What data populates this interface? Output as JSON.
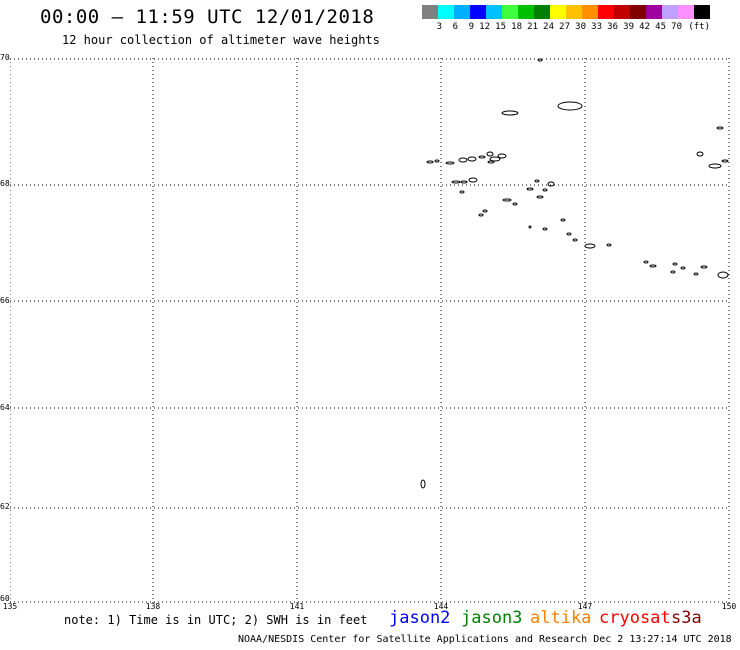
{
  "header": {
    "title": "00:00 – 11:59 UTC 12/01/2018",
    "subtitle": "12 hour collection of altimeter wave heights"
  },
  "legend": {
    "colors": [
      "#808080",
      "#00ffff",
      "#00b0ff",
      "#0000ff",
      "#00c0ff",
      "#40ff40",
      "#00c000",
      "#008000",
      "#ffff00",
      "#ffc000",
      "#ff9000",
      "#ff0000",
      "#c00000",
      "#800000",
      "#a000a0",
      "#c0a0ff",
      "#ff90ff",
      "#000000"
    ],
    "labels": [
      "3",
      "6",
      "9",
      "12",
      "15",
      "18",
      "21",
      "24",
      "27",
      "30",
      "33",
      "36",
      "39",
      "42",
      "45",
      "70"
    ],
    "unit": "(ft)"
  },
  "map": {
    "lat_labels": [
      "70",
      "68",
      "66",
      "64",
      "62",
      "60"
    ],
    "lon_labels": [
      "135",
      "138",
      "141",
      "144",
      "147",
      "150"
    ],
    "grid_lines": "dotted",
    "coastline_color": "#000000"
  },
  "footer": {
    "note": "note: 1) Time is in UTC; 2) SWH is in feet",
    "satellites": [
      {
        "name": "jason2",
        "color": "#0000ff"
      },
      {
        "name": "jason3",
        "color": "#008000"
      },
      {
        "name": "altika",
        "color": "#ff8000"
      },
      {
        "name": "cryosat",
        "color": "#ff0000"
      },
      {
        "name": "s3a",
        "color": "#800000"
      }
    ],
    "credit": "NOAA/NESDIS Center for Satellite Applications and Research   Dec  2 13:27:14 UTC 2018"
  }
}
